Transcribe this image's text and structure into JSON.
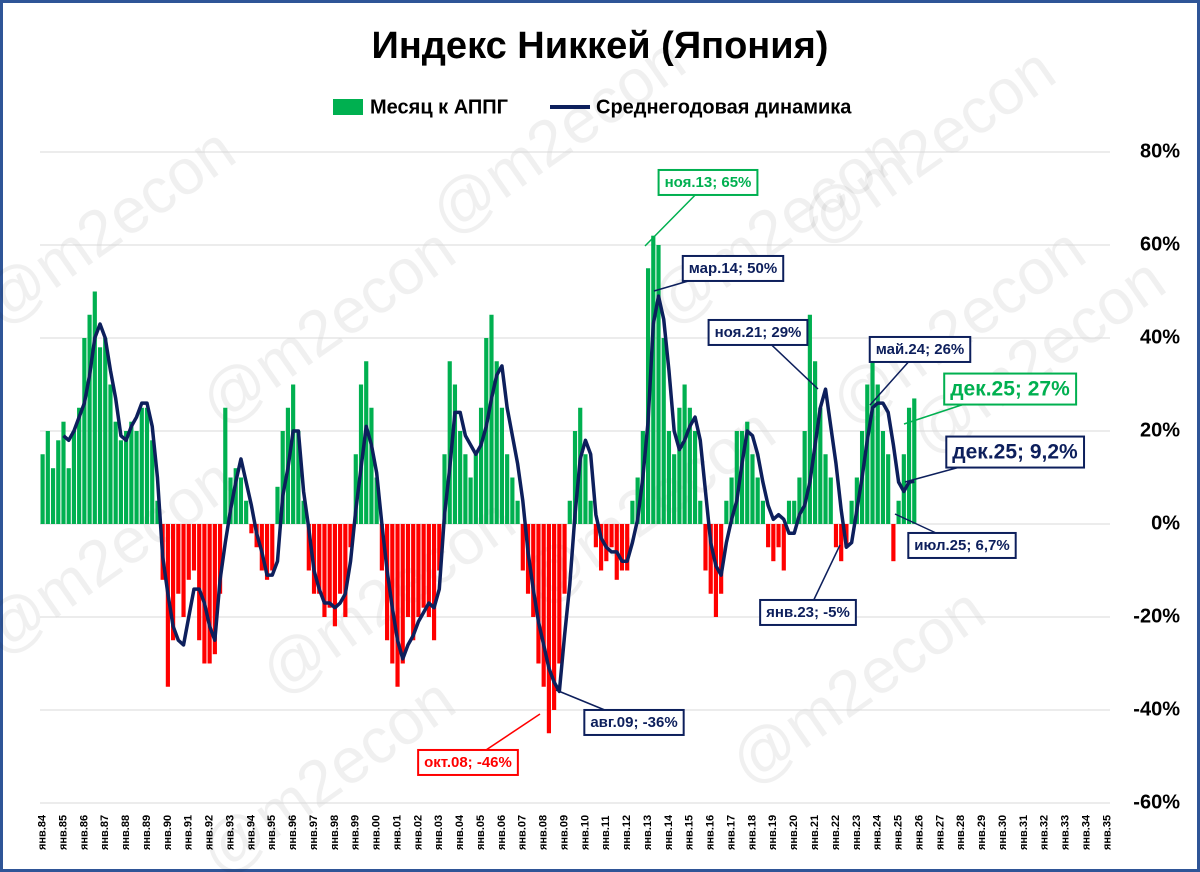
{
  "chart_data": {
    "type": "bar_line",
    "title": "Индекс Никкей (Япония)",
    "watermark": "@m2econ",
    "categories": [
      "янв.84",
      null,
      null,
      null,
      "янв.85",
      null,
      null,
      null,
      "янв.86",
      null,
      null,
      null,
      "янв.87",
      null,
      null,
      null,
      "янв.88",
      null,
      null,
      null,
      "янв.89",
      null,
      null,
      null,
      "янв.90",
      null,
      null,
      null,
      "янв.91",
      null,
      null,
      null,
      "янв.92",
      null,
      null,
      null,
      "янв.93",
      null,
      null,
      null,
      "янв.94",
      null,
      null,
      null,
      "янв.95",
      null,
      null,
      null,
      "янв.96",
      null,
      null,
      null,
      "янв.97",
      null,
      null,
      null,
      "янв.98",
      null,
      null,
      null,
      "янв.99",
      null,
      null,
      null,
      "янв.00",
      null,
      null,
      null,
      "янв.01",
      null,
      null,
      null,
      "янв.02",
      null,
      null,
      null,
      "янв.03",
      null,
      null,
      null,
      "янв.04",
      null,
      null,
      null,
      "янв.05",
      null,
      null,
      null,
      "янв.06",
      null,
      null,
      null,
      "янв.07",
      null,
      null,
      null,
      "янв.08",
      null,
      null,
      null,
      "янв.09",
      null,
      null,
      null,
      "янв.10",
      null,
      null,
      null,
      "янв.11",
      null,
      null,
      null,
      "янв.12",
      null,
      null,
      null,
      "янв.13",
      null,
      null,
      null,
      "янв.14",
      null,
      null,
      null,
      "янв.15",
      null,
      null,
      null,
      "янв.16",
      null,
      null,
      null,
      "янв.17",
      null,
      null,
      null,
      "янв.18",
      null,
      null,
      null,
      "янв.19",
      null,
      null,
      null,
      "янв.20",
      null,
      null,
      null,
      "янв.21",
      null,
      null,
      null,
      "янв.22",
      null,
      null,
      null,
      "янв.23",
      null,
      null,
      null,
      "янв.24",
      null,
      null,
      null,
      "янв.25",
      null,
      null,
      null,
      "янв.26",
      null,
      null,
      null,
      "янв.27",
      null,
      null,
      null,
      "янв.28",
      null,
      null,
      null,
      "янв.29",
      null,
      null,
      null,
      "янв.30",
      null,
      null,
      null,
      "янв.31",
      null,
      null,
      null,
      "янв.32",
      null,
      null,
      null,
      "янв.33",
      null,
      null,
      null,
      "янв.34",
      null,
      null,
      null,
      "янв.35"
    ],
    "series": [
      {
        "name": "Месяц к АППГ",
        "kind": "bar",
        "color": "#00b050",
        "negative_color": "#ff0000",
        "values": [
          15,
          20,
          12,
          18,
          22,
          12,
          20,
          25,
          40,
          45,
          50,
          38,
          40,
          30,
          22,
          18,
          20,
          22,
          20,
          25,
          25,
          18,
          5,
          -12,
          -35,
          -25,
          -15,
          -20,
          -12,
          -10,
          -25,
          -30,
          -30,
          -28,
          -15,
          25,
          10,
          12,
          10,
          5,
          -2,
          -5,
          -10,
          -12,
          -10,
          8,
          20,
          25,
          30,
          20,
          5,
          -10,
          -15,
          -15,
          -20,
          -18,
          -22,
          -15,
          -20,
          -5,
          15,
          30,
          35,
          25,
          10,
          -10,
          -25,
          -30,
          -35,
          -30,
          -20,
          -25,
          -20,
          -18,
          -20,
          -25,
          -10,
          15,
          35,
          30,
          20,
          15,
          10,
          15,
          25,
          40,
          45,
          35,
          25,
          15,
          10,
          5,
          -10,
          -15,
          -20,
          -30,
          -35,
          -45,
          -40,
          -30,
          -15,
          5,
          20,
          25,
          15,
          5,
          -5,
          -10,
          -8,
          -5,
          -12,
          -10,
          -10,
          5,
          10,
          20,
          55,
          62,
          60,
          40,
          20,
          15,
          25,
          30,
          25,
          20,
          5,
          -10,
          -15,
          -20,
          -15,
          5,
          10,
          20,
          20,
          22,
          15,
          10,
          5,
          -5,
          -8,
          -5,
          -10,
          5,
          5,
          10,
          20,
          45,
          35,
          25,
          15,
          10,
          -5,
          -8,
          -5,
          5,
          10,
          20,
          30,
          40,
          30,
          20,
          15,
          -8,
          5,
          15,
          25,
          27,
          null,
          null,
          null,
          null,
          null,
          null,
          null,
          null,
          null,
          null,
          null,
          null,
          null,
          null,
          null,
          null,
          null,
          null,
          null,
          null,
          null,
          null,
          null,
          null,
          null,
          null,
          null,
          null,
          null,
          null,
          null,
          null,
          null,
          null,
          null,
          null,
          null
        ]
      },
      {
        "name": "Среднегодовая динамика",
        "kind": "line",
        "color": "#0d1f5c",
        "values": [
          null,
          null,
          null,
          null,
          19,
          18,
          20,
          23,
          26,
          32,
          40,
          43,
          40,
          33,
          27,
          19,
          18,
          21,
          23,
          26,
          26,
          21,
          10,
          -7,
          -15,
          -22,
          -25,
          -26,
          -20,
          -14,
          -14,
          -17,
          -22,
          -25,
          -12,
          -4,
          3,
          9,
          14,
          9,
          4,
          -2,
          -6,
          -11,
          -11,
          -8,
          6,
          12,
          20,
          20,
          7,
          -1,
          -10,
          -14,
          -17,
          -17,
          -18,
          -17,
          -15,
          -8,
          3,
          12,
          21,
          17,
          11,
          0,
          -10,
          -18,
          -25,
          -29,
          -26,
          -24,
          -21,
          -19,
          -17,
          -18,
          -14,
          2,
          12,
          24,
          24,
          19,
          17,
          15,
          17,
          21,
          27,
          32,
          34,
          25,
          19,
          13,
          5,
          -6,
          -14,
          -21,
          -26,
          -31,
          -34,
          -36,
          -24,
          -13,
          2,
          14,
          18,
          15,
          2,
          -3,
          -5,
          -6,
          -6,
          -8,
          -8,
          -4,
          1,
          10,
          22,
          43,
          49,
          44,
          33,
          20,
          16,
          18,
          21,
          23,
          18,
          7,
          -4,
          -9,
          -11,
          -4,
          1,
          5,
          13,
          20,
          19,
          15,
          9,
          4,
          1,
          2,
          1,
          -2,
          -2,
          2,
          4,
          9,
          17,
          25,
          29,
          21,
          13,
          3,
          -5,
          -4,
          3,
          10,
          18,
          25,
          26,
          26,
          24,
          17,
          9,
          7,
          9,
          9.2,
          null,
          null,
          null,
          null,
          null,
          null,
          null,
          null,
          null,
          null,
          null,
          null,
          null,
          null,
          null,
          null,
          null,
          null,
          null,
          null,
          null,
          null,
          null,
          null,
          null,
          null,
          null,
          null,
          null,
          null,
          null,
          null,
          null,
          null,
          null,
          null,
          null
        ]
      }
    ],
    "ylim": [
      -60,
      80
    ],
    "yticks": [
      {
        "value": -60,
        "label": "-60%"
      },
      {
        "value": -40,
        "label": "-40%"
      },
      {
        "value": -20,
        "label": "-20%"
      },
      {
        "value": 0,
        "label": "0%"
      },
      {
        "value": 20,
        "label": "20%"
      },
      {
        "value": 40,
        "label": "40%"
      },
      {
        "value": 60,
        "label": "60%"
      },
      {
        "value": 80,
        "label": "80%"
      }
    ],
    "y_axis_side": "right",
    "grid": true,
    "annotations": [
      {
        "text": "ноя.13; 65%",
        "color": "#00b050"
      },
      {
        "text": "мар.14; 50%",
        "color": "#0d1f5c"
      },
      {
        "text": "ноя.21; 29%",
        "color": "#0d1f5c"
      },
      {
        "text": "май.24; 26%",
        "color": "#0d1f5c"
      },
      {
        "text": "дек.25; 27%",
        "color": "#00b050"
      },
      {
        "text": "дек.25; 9,2%",
        "color": "#0d1f5c"
      },
      {
        "text": "июл.25; 6,7%",
        "color": "#0d1f5c"
      },
      {
        "text": "янв.23; -5%",
        "color": "#0d1f5c"
      },
      {
        "text": "авг.09; -36%",
        "color": "#0d1f5c"
      },
      {
        "text": "окт.08; -46%",
        "color": "#ff0000"
      }
    ]
  }
}
